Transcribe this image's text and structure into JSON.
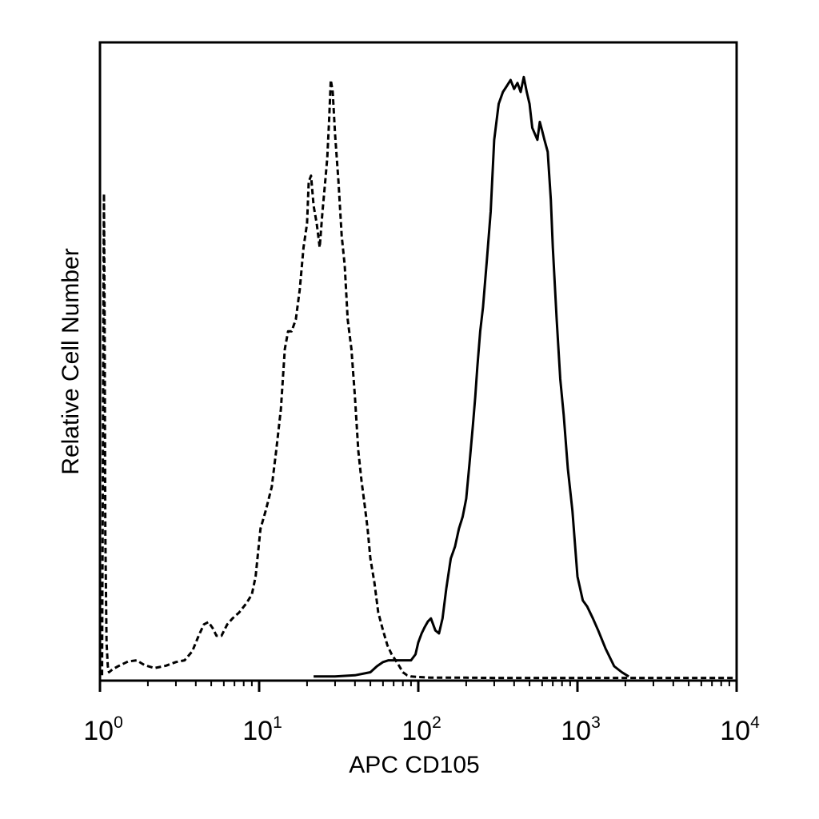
{
  "chart_data": {
    "type": "line",
    "xlabel": "APC CD105",
    "ylabel": "Relative Cell Number",
    "x_scale": "log",
    "xlim": [
      1,
      10000
    ],
    "ylim": [
      0,
      100
    ],
    "x_ticks": [
      {
        "base": "10",
        "exp": "0",
        "value": 1
      },
      {
        "base": "10",
        "exp": "1",
        "value": 10
      },
      {
        "base": "10",
        "exp": "2",
        "value": 100
      },
      {
        "base": "10",
        "exp": "3",
        "value": 1000
      },
      {
        "base": "10",
        "exp": "4",
        "value": 10000
      }
    ],
    "grid": false,
    "legend": "none",
    "series": [
      {
        "style": "dashed",
        "color": "#000000",
        "x": [
          1.03,
          1.04,
          1.05,
          1.06,
          1.07,
          1.08,
          1.1,
          1.12,
          1.14,
          1.2,
          1.3,
          1.5,
          1.7,
          1.9,
          2.2,
          2.6,
          3.0,
          3.4,
          3.8,
          4.2,
          4.5,
          4.8,
          5.1,
          5.4,
          5.8,
          6.3,
          6.8,
          7.5,
          8.3,
          9.0,
          9.5,
          10.2,
          11.0,
          12.0,
          12.8,
          13.7,
          14.5,
          15.2,
          16.0,
          17.0,
          18.0,
          19.0,
          20.0,
          20.5,
          21.2,
          22.0,
          23.0,
          24.0,
          25.0,
          26.0,
          26.8,
          27.5,
          28.2,
          29.0,
          30.0,
          31.5,
          33.0,
          34.5,
          36.0,
          38.0,
          40.0,
          42.0,
          44.0,
          46.0,
          48.0,
          50.0,
          53.0,
          56.0,
          60.0,
          64.0,
          68.0,
          72.0,
          76.0,
          80.0,
          85.0,
          90.0,
          100,
          120,
          150,
          200,
          300,
          500,
          800,
          1200,
          2000,
          4000,
          10000
        ],
        "y": [
          0.5,
          27,
          60,
          81,
          60,
          24,
          6,
          2,
          1,
          1.5,
          2,
          2.8,
          3,
          2.2,
          1.7,
          2.1,
          2.7,
          3,
          4.5,
          7.3,
          9,
          9.4,
          8.4,
          7.1,
          7.1,
          9,
          10,
          11,
          12.5,
          14,
          17,
          25,
          28,
          32,
          38,
          45,
          55,
          58,
          58,
          60,
          65,
          72,
          76,
          83,
          84,
          79,
          76,
          72,
          78,
          83,
          87,
          93,
          100,
          98,
          91,
          83,
          74,
          69,
          60,
          55,
          47,
          38,
          33,
          29,
          25,
          20,
          16,
          11,
          8,
          5.5,
          4,
          3,
          2,
          1,
          0.5,
          0.3,
          0.2,
          0.1,
          0.1,
          0.1,
          0.05,
          0.05,
          0.05,
          0.05,
          0.05,
          0.05,
          0.05
        ]
      },
      {
        "style": "solid",
        "color": "#000000",
        "x": [
          22,
          30,
          40,
          50,
          55,
          60,
          65,
          70,
          80,
          90,
          96,
          100,
          105,
          110,
          115,
          120,
          128,
          135,
          142,
          150,
          160,
          170,
          180,
          190,
          200,
          210,
          220,
          228,
          235,
          245,
          255,
          270,
          285,
          300,
          320,
          340,
          360,
          380,
          400,
          420,
          440,
          460,
          480,
          500,
          520,
          540,
          560,
          580,
          600,
          620,
          650,
          680,
          700,
          740,
          780,
          820,
          870,
          930,
          1000,
          1080,
          1150,
          1250,
          1350,
          1500,
          1700,
          1900,
          2100
        ],
        "y": [
          0.3,
          0.3,
          0.5,
          1,
          2,
          2.7,
          3,
          3,
          3,
          3,
          4,
          6,
          7.5,
          8.6,
          9.5,
          10,
          8,
          7.5,
          10,
          15,
          20,
          22,
          25,
          27,
          30,
          36,
          42,
          47,
          52,
          58,
          62,
          70,
          78,
          90,
          96,
          98,
          99,
          100,
          98.5,
          99.5,
          98,
          100.5,
          98,
          96,
          92,
          91,
          90,
          93,
          91.5,
          90,
          88,
          80,
          72,
          60,
          50,
          44,
          35,
          28,
          17,
          13,
          12,
          10,
          8,
          5,
          2,
          1,
          0.3
        ]
      }
    ]
  }
}
